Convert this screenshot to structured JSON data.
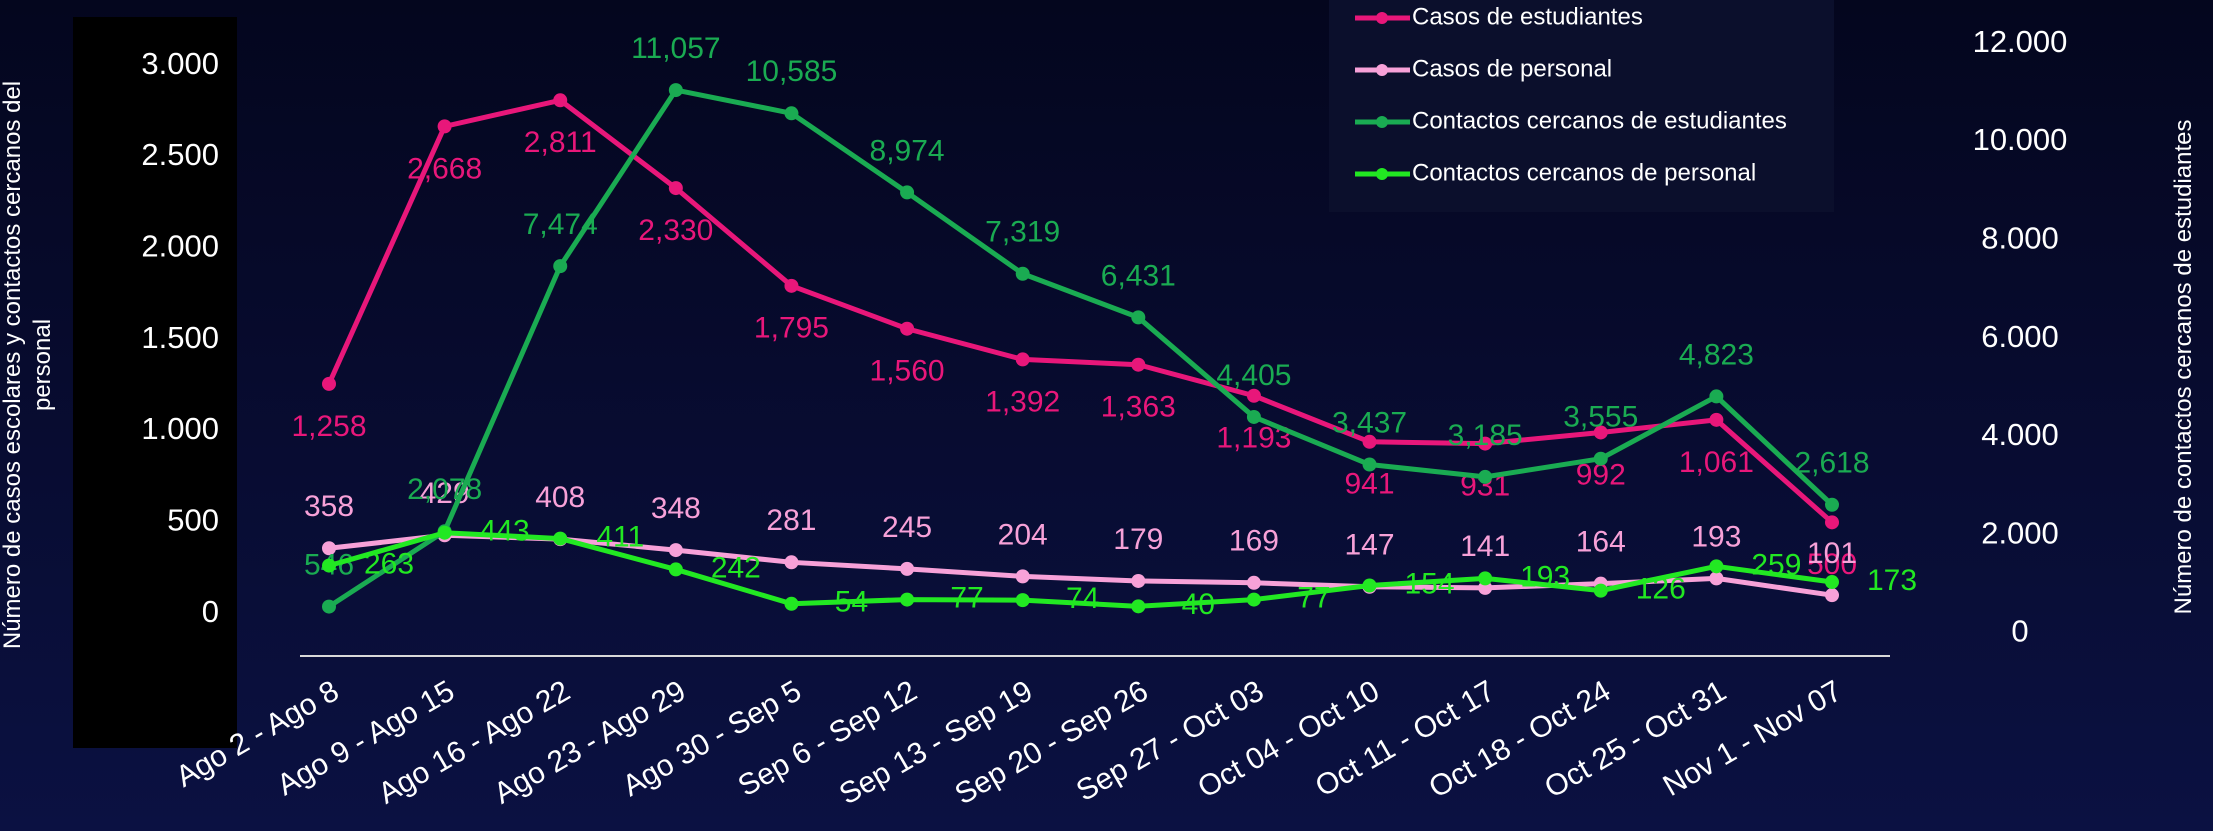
{
  "chart_data": {
    "type": "line",
    "y_label": "Número de casos escolares y contactos cercanos del personal",
    "y2_label": "Número de contactos cercanos de estudiantes",
    "categories": [
      "Ago 2 - Ago 8",
      "Ago 9 - Ago 15",
      "Ago 16 - Ago 22",
      "Ago 23 - Ago 29",
      "Ago 30 - Sep 5",
      "Sep 6 - Sep 12",
      "Sep 13 - Sep 19",
      "Sep 20 - Sep 26",
      "Sep 27 - Oct 03",
      "Oct 04 - Oct 10",
      "Oct 11 - Oct 17",
      "Oct 18 - Oct 24",
      "Oct 25 - Oct 31",
      "Nov 1 - Nov 07"
    ],
    "ylim": [
      -232,
      3360
    ],
    "yticks": [
      0,
      500,
      {
        "value": 1000,
        "label": "1.000"
      },
      {
        "value": 1500,
        "label": "1.500"
      },
      {
        "value": 2000,
        "label": "2.000"
      },
      {
        "value": 2500,
        "label": "2.500"
      },
      {
        "value": 3000,
        "label": "3.000"
      }
    ],
    "y2lim": [
      -460,
      12890
    ],
    "y2ticks": [
      0,
      {
        "value": 2000,
        "label": "2.000"
      },
      {
        "value": 4000,
        "label": "4.000"
      },
      {
        "value": 6000,
        "label": "6.000"
      },
      {
        "value": 8000,
        "label": "8.000"
      },
      {
        "value": 10000,
        "label": "10.000"
      },
      {
        "value": 12000,
        "label": "12.000"
      }
    ],
    "legend": "top-right",
    "series": [
      {
        "name": "Casos de estudiantes",
        "color": "#e8177a",
        "values": [
          1258,
          2668,
          2811,
          2330,
          1795,
          1560,
          1392,
          1363,
          1193,
          941,
          931,
          992,
          1061,
          500
        ],
        "value_labels": [
          "1,258",
          "2,668",
          "2,811",
          "2,330",
          "1,795",
          "1,560",
          "1,392",
          "1,363",
          "1,193",
          "941",
          "931",
          "992",
          "1,061",
          "500"
        ]
      },
      {
        "name": "Casos de personal",
        "color": "#f7a1d8",
        "values": [
          358,
          429,
          408,
          348,
          281,
          245,
          204,
          179,
          169,
          147,
          141,
          164,
          193,
          101
        ],
        "value_labels": [
          "358",
          "429",
          "408",
          "348",
          "281",
          "245",
          "204",
          "179",
          "169",
          "147",
          "141",
          "164",
          "193",
          "101"
        ]
      },
      {
        "name": "Contactos cercanos de estudiantes",
        "color": "#1aab52",
        "axis": "y2",
        "values": [
          546,
          2078,
          7474,
          11057,
          10585,
          8974,
          7319,
          6431,
          4405,
          3437,
          3185,
          3555,
          4823,
          2618
        ],
        "value_labels": [
          "546",
          "2,078",
          "7,474",
          "11,057",
          "10,585",
          "8,974",
          "7,319",
          "6,431",
          "4,405",
          "3,437",
          "3,185",
          "3,555",
          "4,823",
          "2,618"
        ]
      },
      {
        "name": "Contactos cercanos de personal",
        "color": "#22e822",
        "values": [
          263,
          443,
          411,
          242,
          54,
          77,
          74,
          40,
          77,
          154,
          193,
          126,
          259,
          173
        ],
        "value_labels": [
          "263",
          "443",
          "411",
          "242",
          "54",
          "77",
          "74",
          "40",
          "77",
          "154",
          "193",
          "126",
          "259",
          "173"
        ]
      }
    ]
  }
}
